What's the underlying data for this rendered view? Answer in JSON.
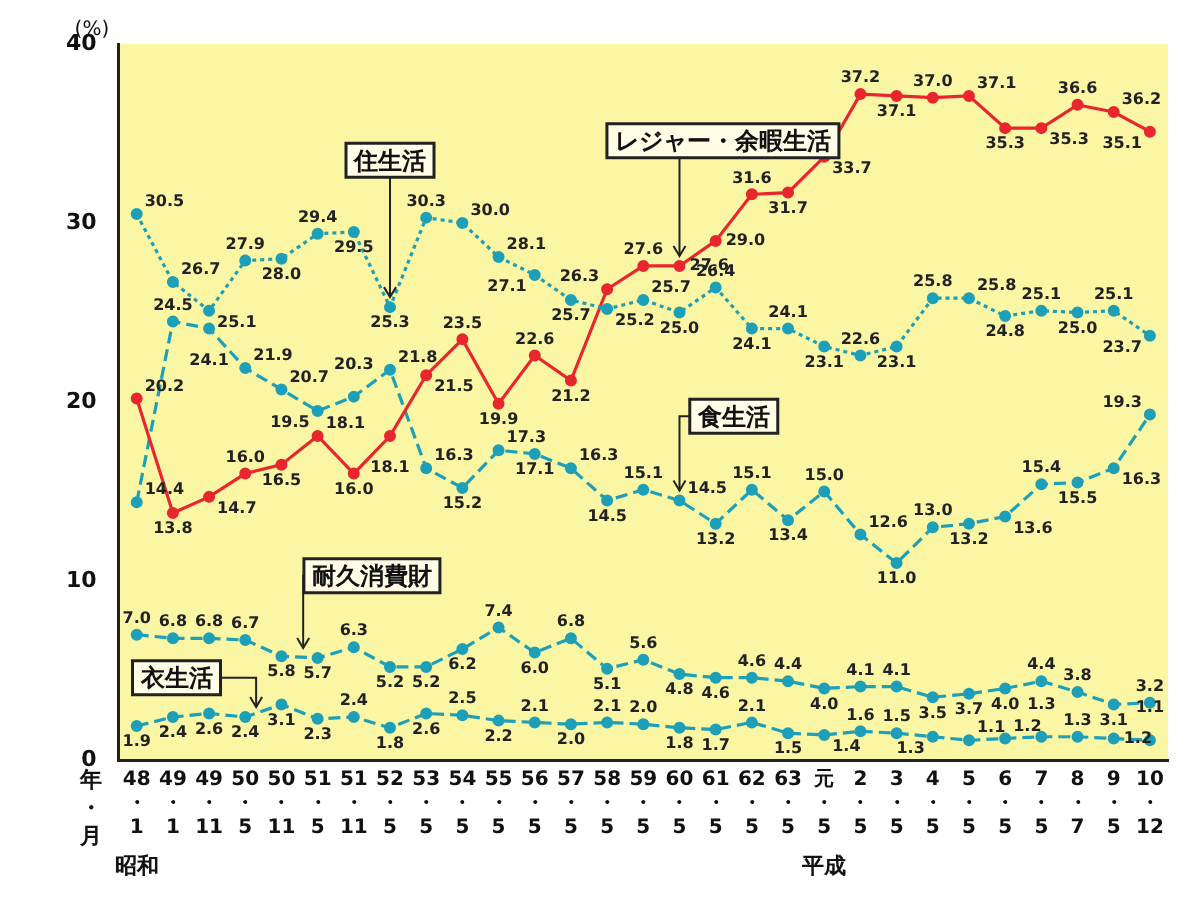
{
  "chart_data": {
    "type": "line",
    "ylabel": "(%)",
    "categories": [
      "48・1",
      "49・1",
      "49・11",
      "50・5",
      "50・11",
      "51・5",
      "51・11",
      "52・5",
      "53・5",
      "54・5",
      "55・5",
      "56・5",
      "57・5",
      "58・5",
      "59・5",
      "60・5",
      "61・5",
      "62・5",
      "63・5",
      "元・5",
      "2・5",
      "3・5",
      "4・5",
      "5・5",
      "6・5",
      "7・5",
      "8・7",
      "9・5",
      "10・12"
    ],
    "series": [
      {
        "name": "住生活",
        "color": "#1e9fb8",
        "line_style": "dotted",
        "values": [
          30.5,
          26.7,
          25.1,
          27.9,
          28.0,
          29.4,
          29.5,
          25.3,
          30.3,
          30.0,
          28.1,
          27.1,
          25.7,
          25.2,
          25.7,
          25.0,
          26.4,
          24.1,
          24.1,
          23.1,
          22.6,
          23.1,
          25.8,
          25.8,
          24.8,
          25.1,
          25.0,
          25.1,
          23.7
        ],
        "value_labels": [
          "30.5",
          "26.7",
          "25.1",
          "27.9",
          "28.0",
          "29.4",
          "29.5",
          "25.3",
          "30.3",
          "30.0",
          "28.1",
          "27.1",
          "25.7",
          "25.2",
          "25.7",
          "25.0",
          "26.4",
          "24.1",
          "24.1",
          "23.1",
          "22.6",
          "23.1",
          "25.8",
          "25.8",
          "24.8",
          "25.1",
          "25.0",
          "25.1",
          "23.7"
        ]
      },
      {
        "name": "レジャー・余暇生活",
        "color": "#e8262d",
        "line_style": "solid",
        "values": [
          20.2,
          13.8,
          14.7,
          16.0,
          16.5,
          18.1,
          16.0,
          18.1,
          21.5,
          23.5,
          19.9,
          22.6,
          21.2,
          26.3,
          27.6,
          27.6,
          29.0,
          31.6,
          31.7,
          33.7,
          37.2,
          37.1,
          37.0,
          37.1,
          35.3,
          35.3,
          36.6,
          36.2,
          35.1
        ],
        "value_labels": [
          "20.2",
          "13.8",
          "14.7",
          "16.0",
          "16.5",
          "18.1",
          "16.0",
          "18.1",
          "21.5",
          "23.5",
          "19.9",
          "22.6",
          "21.2",
          "26.3",
          "27.6",
          "27.6",
          "29.0",
          "31.6",
          "31.7",
          "33.7",
          "37.2",
          "37.1",
          "37.0",
          "37.1",
          "35.3",
          "35.3",
          "36.6",
          "36.2",
          "35.1"
        ]
      },
      {
        "name": "食生活",
        "color": "#1e9fb8",
        "line_style": "dashed",
        "values": [
          14.4,
          24.5,
          24.1,
          21.9,
          20.7,
          19.5,
          20.3,
          21.8,
          16.3,
          15.2,
          17.3,
          17.1,
          16.3,
          14.5,
          15.1,
          14.5,
          13.2,
          15.1,
          13.4,
          15.0,
          12.6,
          11.0,
          13.0,
          13.2,
          13.6,
          15.4,
          15.5,
          16.3,
          19.3
        ],
        "value_labels": [
          "14.4",
          "24.5",
          "24.1",
          "21.9",
          "20.7",
          "19.5",
          "20.3",
          "21.8",
          "16.3",
          "15.2",
          "17.3",
          "17.1",
          "16.3",
          "14.5",
          "15.1",
          "14.5",
          "13.2",
          "15.1",
          "13.4",
          "15.0",
          "12.6",
          "11.0",
          "13.0",
          "13.2",
          "13.6",
          "15.4",
          "15.5",
          "16.3",
          "19.3"
        ]
      },
      {
        "name": "耐久消費財",
        "color": "#1e9fb8",
        "line_style": "dashed",
        "values": [
          7.0,
          6.8,
          6.8,
          6.7,
          5.8,
          5.7,
          6.3,
          5.2,
          5.2,
          6.2,
          7.4,
          6.0,
          6.8,
          5.1,
          5.6,
          4.8,
          4.6,
          4.6,
          4.4,
          4.0,
          4.1,
          4.1,
          3.5,
          3.7,
          4.0,
          4.4,
          3.8,
          3.1,
          3.2
        ],
        "value_labels": [
          "7.0",
          "6.8",
          "6.8",
          "6.7",
          "5.8",
          "5.7",
          "6.3",
          "5.2",
          "5.2",
          "6.2",
          "7.4",
          "6.0",
          "6.8",
          "5.1",
          "5.6",
          "4.8",
          "4.6",
          "4.6",
          "4.4",
          "4.0",
          "4.1",
          "4.1",
          "3.5",
          "3.7",
          "4.0",
          "4.4",
          "3.8",
          "3.1",
          "3.2"
        ]
      },
      {
        "name": "衣生活",
        "color": "#1e9fb8",
        "line_style": "dashed",
        "values": [
          1.9,
          2.4,
          2.6,
          2.4,
          3.1,
          2.3,
          2.4,
          1.8,
          2.6,
          2.5,
          2.2,
          2.1,
          2.0,
          2.1,
          2.0,
          1.8,
          1.7,
          2.1,
          1.5,
          1.4,
          1.6,
          1.5,
          1.3,
          1.1,
          1.2,
          1.3,
          1.3,
          1.2,
          1.1
        ],
        "value_labels": [
          "1.9",
          "2.4",
          "2.6",
          "2.4",
          "3.1",
          "2.3",
          "2.4",
          "1.8",
          "2.6",
          "2.5",
          "2.2",
          "2.1",
          "2.0",
          "2.1",
          "2.0",
          "1.8",
          "1.7",
          "2.1",
          "1.5",
          "1.4",
          "1.6",
          "1.5",
          "1.3",
          "1.1",
          "1.2",
          "1.3",
          "1.3",
          "1.2",
          "1.1"
        ]
      }
    ],
    "ylim": [
      0,
      40
    ],
    "yticks": [
      0,
      10,
      20,
      30,
      40
    ],
    "grid": false,
    "legend": false,
    "marker": "circle",
    "annotations": [
      "年・月",
      "昭和",
      "平成"
    ]
  }
}
